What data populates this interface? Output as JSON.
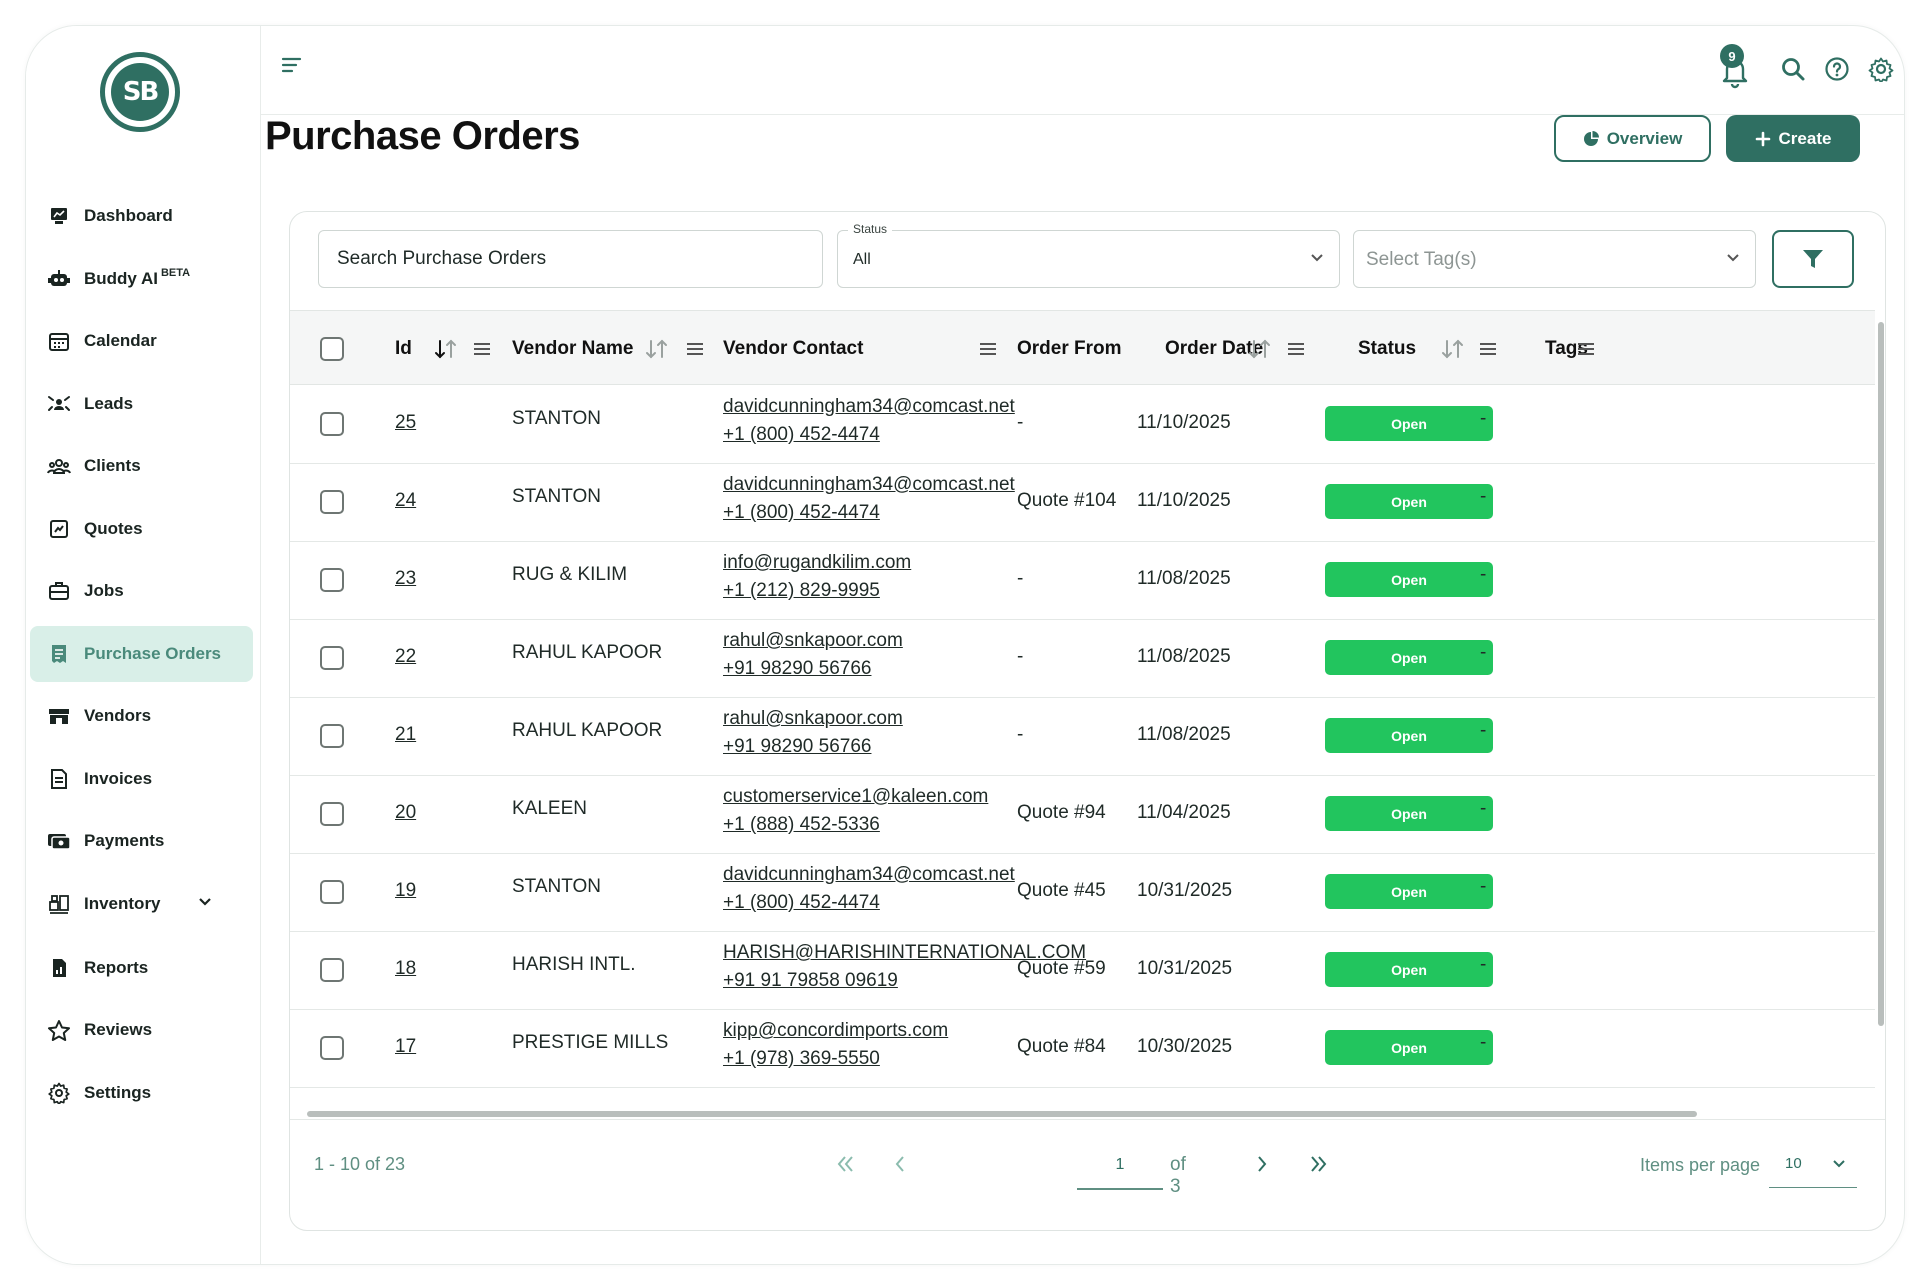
{
  "brand": {
    "logo_text": "SB"
  },
  "sidebar": {
    "items": [
      {
        "label": "Dashboard",
        "icon": "dashboard-icon"
      },
      {
        "label": "Buddy AI",
        "badge": "BETA",
        "icon": "robot-icon"
      },
      {
        "label": "Calendar",
        "icon": "calendar-icon"
      },
      {
        "label": "Leads",
        "icon": "leads-icon"
      },
      {
        "label": "Clients",
        "icon": "clients-icon"
      },
      {
        "label": "Quotes",
        "icon": "quotes-icon"
      },
      {
        "label": "Jobs",
        "icon": "briefcase-icon"
      },
      {
        "label": "Purchase Orders",
        "icon": "receipt-icon",
        "active": true
      },
      {
        "label": "Vendors",
        "icon": "store-icon"
      },
      {
        "label": "Invoices",
        "icon": "invoice-icon"
      },
      {
        "label": "Payments",
        "icon": "payments-icon"
      },
      {
        "label": "Inventory",
        "icon": "inventory-icon"
      },
      {
        "label": "Reports",
        "icon": "reports-icon"
      },
      {
        "label": "Reviews",
        "icon": "star-icon"
      },
      {
        "label": "Settings",
        "icon": "gear-icon"
      }
    ]
  },
  "topbar": {
    "notification_count": "9"
  },
  "header": {
    "title": "Purchase Orders",
    "overview_label": "Overview",
    "create_label": "Create"
  },
  "filters": {
    "search_placeholder": "Search Purchase Orders",
    "status_label": "Status",
    "status_value": "All",
    "tags_placeholder": "Select Tag(s)"
  },
  "table": {
    "columns": {
      "id": "Id",
      "vendor_name": "Vendor Name",
      "vendor_contact": "Vendor Contact",
      "order_from": "Order From",
      "order_date": "Order Date",
      "status": "Status",
      "tags": "Tags"
    },
    "rows": [
      {
        "id": "25",
        "vendor": "STANTON",
        "email": "davidcunningham34@comcast.net",
        "phone": "+1 (800) 452-4474",
        "order_from": "-",
        "date": "11/10/2025",
        "status": "Open",
        "tags": "-"
      },
      {
        "id": "24",
        "vendor": "STANTON",
        "email": "davidcunningham34@comcast.net",
        "phone": "+1 (800) 452-4474",
        "order_from": "Quote #104",
        "date": "11/10/2025",
        "status": "Open",
        "tags": "-"
      },
      {
        "id": "23",
        "vendor": "RUG & KILIM",
        "email": "info@rugandkilim.com",
        "phone": "+1 (212) 829-9995",
        "order_from": "-",
        "date": "11/08/2025",
        "status": "Open",
        "tags": "-"
      },
      {
        "id": "22",
        "vendor": "RAHUL KAPOOR",
        "email": "rahul@snkapoor.com",
        "phone": "+91 98290 56766",
        "order_from": "-",
        "date": "11/08/2025",
        "status": "Open",
        "tags": "-"
      },
      {
        "id": "21",
        "vendor": "RAHUL KAPOOR",
        "email": "rahul@snkapoor.com",
        "phone": "+91 98290 56766",
        "order_from": "-",
        "date": "11/08/2025",
        "status": "Open",
        "tags": "-"
      },
      {
        "id": "20",
        "vendor": "KALEEN",
        "email": "customerservice1@kaleen.com",
        "phone": "+1 (888) 452-5336",
        "order_from": "Quote #94",
        "date": "11/04/2025",
        "status": "Open",
        "tags": "-"
      },
      {
        "id": "19",
        "vendor": "STANTON",
        "email": "davidcunningham34@comcast.net",
        "phone": "+1 (800) 452-4474",
        "order_from": "Quote #45",
        "date": "10/31/2025",
        "status": "Open",
        "tags": "-"
      },
      {
        "id": "18",
        "vendor": "HARISH INTL.",
        "email": "HARISH@HARISHINTERNATIONAL.COM",
        "phone": "+91 91 79858 09619",
        "order_from": "Quote #59",
        "date": "10/31/2025",
        "status": "Open",
        "tags": "-"
      },
      {
        "id": "17",
        "vendor": "PRESTIGE MILLS",
        "email": "kipp@concordimports.com",
        "phone": "+1 (978) 369-5550",
        "order_from": "Quote #84",
        "date": "10/30/2025",
        "status": "Open",
        "tags": "-"
      }
    ]
  },
  "pagination": {
    "range_text": "1 - 10 of 23",
    "current_page": "1",
    "of_text": "of  3",
    "items_per_page_label": "Items per page",
    "items_per_page_value": "10"
  },
  "colors": {
    "primary": "#2f6f62",
    "status_open": "#22c55e",
    "active_nav_bg": "#d9efe8"
  }
}
